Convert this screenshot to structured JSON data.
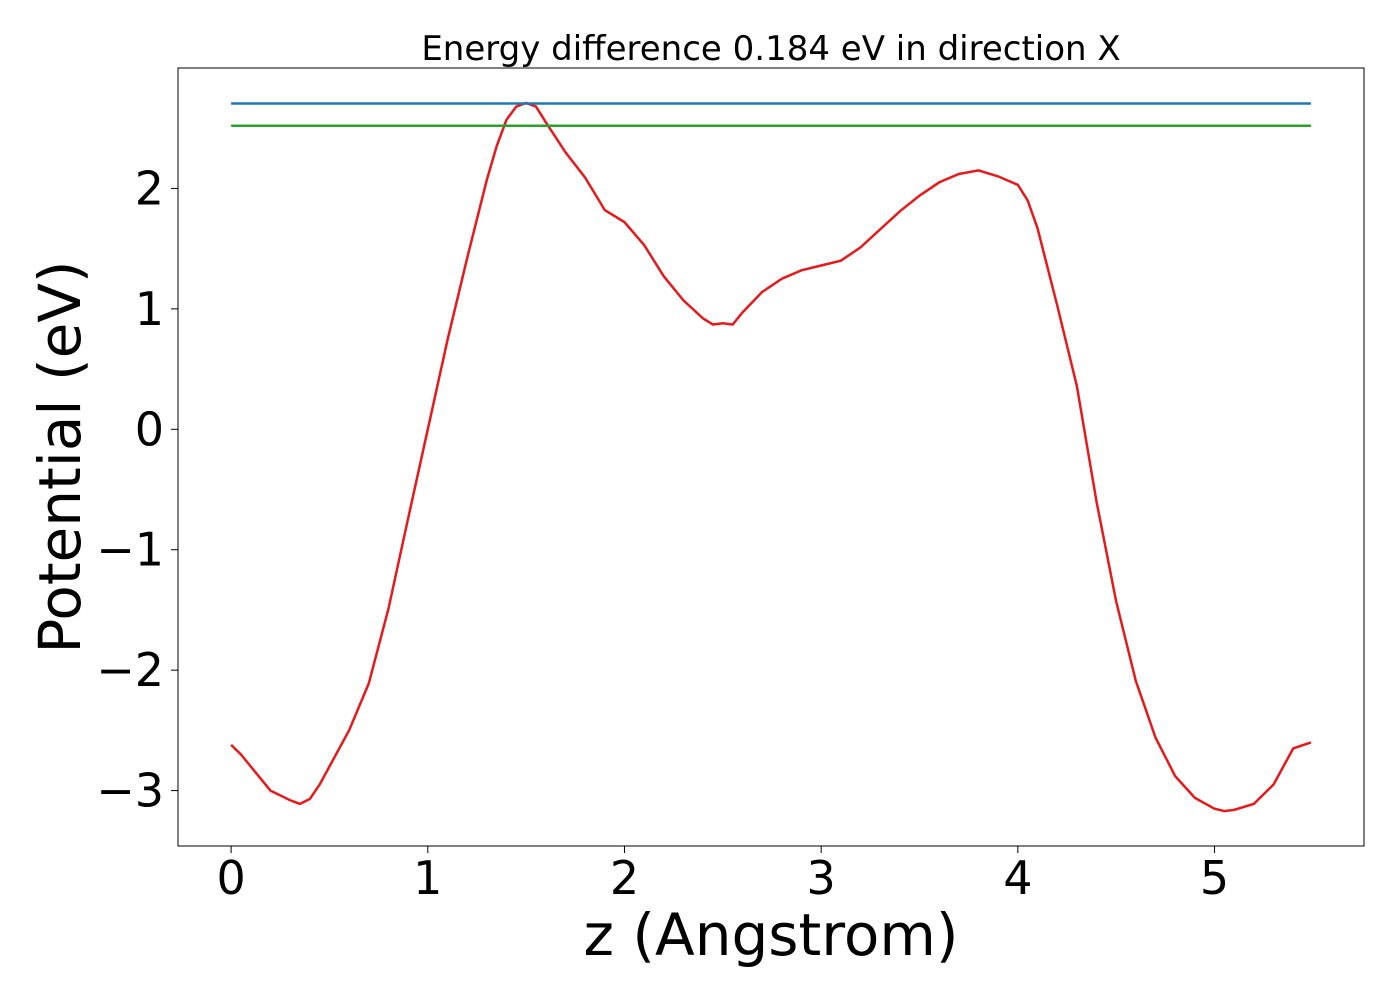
{
  "chart_data": {
    "type": "line",
    "title": "Energy difference 0.184 eV in direction X",
    "xlabel": "z (Angstrom)",
    "ylabel": "Potential (eV)",
    "xlim": [
      -0.27,
      5.76
    ],
    "ylim": [
      -3.46,
      3.0
    ],
    "xticks": [
      0,
      1,
      2,
      3,
      4,
      5
    ],
    "yticks": [
      {
        "value": -3,
        "label": "−3"
      },
      {
        "value": -2,
        "label": "−2"
      },
      {
        "value": -1,
        "label": "−1"
      },
      0,
      1,
      2
    ],
    "grid": false,
    "series": [
      {
        "color": "#e41a1c",
        "x": [
          0,
          0.05,
          0.1,
          0.2,
          0.3,
          0.35,
          0.4,
          0.45,
          0.5,
          0.6,
          0.7,
          0.8,
          0.9,
          1.0,
          1.1,
          1.2,
          1.3,
          1.35,
          1.4,
          1.45,
          1.5,
          1.55,
          1.6,
          1.7,
          1.8,
          1.9,
          2.0,
          2.1,
          2.2,
          2.3,
          2.4,
          2.45,
          2.5,
          2.55,
          2.6,
          2.7,
          2.8,
          2.9,
          3.0,
          3.1,
          3.2,
          3.3,
          3.4,
          3.5,
          3.6,
          3.7,
          3.8,
          3.9,
          4.0,
          4.05,
          4.1,
          4.15,
          4.2,
          4.3,
          4.4,
          4.5,
          4.6,
          4.7,
          4.8,
          4.9,
          5.0,
          5.05,
          5.1,
          5.2,
          5.3,
          5.4,
          5.49
        ],
        "values": [
          -2.62,
          -2.7,
          -2.8,
          -3.0,
          -3.08,
          -3.11,
          -3.07,
          -2.95,
          -2.8,
          -2.5,
          -2.11,
          -1.49,
          -0.74,
          0.0,
          0.74,
          1.42,
          2.07,
          2.35,
          2.57,
          2.68,
          2.71,
          2.68,
          2.55,
          2.3,
          2.09,
          1.82,
          1.72,
          1.53,
          1.27,
          1.07,
          0.92,
          0.87,
          0.88,
          0.87,
          0.97,
          1.14,
          1.25,
          1.32,
          1.36,
          1.4,
          1.51,
          1.66,
          1.81,
          1.94,
          2.05,
          2.12,
          2.15,
          2.1,
          2.03,
          1.9,
          1.67,
          1.35,
          1.03,
          0.36,
          -0.6,
          -1.43,
          -2.09,
          -2.56,
          -2.88,
          -3.06,
          -3.15,
          -3.17,
          -3.16,
          -3.11,
          -2.95,
          -2.65,
          -2.6
        ]
      },
      {
        "color": "#1f77b4",
        "x": [
          0,
          5.49
        ],
        "values": [
          2.705,
          2.705
        ]
      },
      {
        "color": "#2ca02c",
        "x": [
          0,
          5.49
        ],
        "values": [
          2.521,
          2.521
        ]
      }
    ]
  }
}
